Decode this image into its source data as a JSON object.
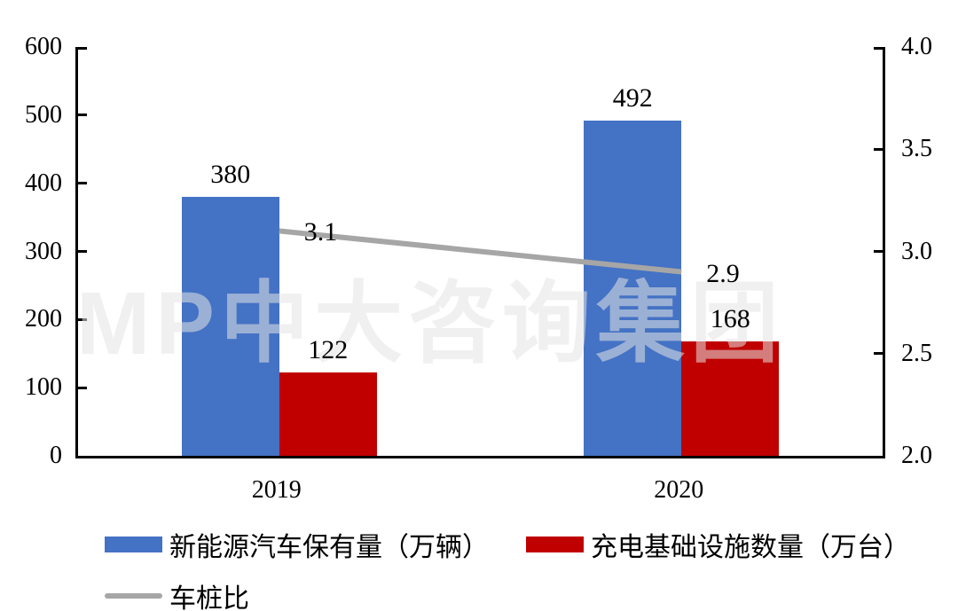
{
  "figure": {
    "watermark": "MP中大咨询集团",
    "background": "#FFFFFF"
  },
  "colors": {
    "bar_blue": "#4472C4",
    "bar_red": "#C00000",
    "line_gray": "#A6A6A6",
    "axis": "#000000"
  },
  "chart_data": {
    "type": "bar",
    "categories": [
      "2019",
      "2020"
    ],
    "series": [
      {
        "name": "新能源汽车保有量（万辆）",
        "type": "bar",
        "axis": "left",
        "color": "#4472C4",
        "values": [
          380,
          492
        ],
        "labels": [
          "380",
          "492"
        ]
      },
      {
        "name": "充电基础设施数量（万台）",
        "type": "bar",
        "axis": "left",
        "color": "#C00000",
        "values": [
          122,
          168
        ],
        "labels": [
          "122",
          "168"
        ]
      },
      {
        "name": "车桩比",
        "type": "line",
        "axis": "right",
        "color": "#A6A6A6",
        "values": [
          3.1,
          2.9
        ],
        "labels": [
          "3.1",
          "2.9"
        ]
      }
    ],
    "left_axis": {
      "min": 0,
      "max": 600,
      "tick_labels": [
        "600",
        "500",
        "400",
        "300",
        "200",
        "100",
        "0"
      ]
    },
    "right_axis": {
      "min": 2.0,
      "max": 4.0,
      "tick_labels": [
        "4.0",
        "3.5",
        "3.0",
        "2.5",
        "2.0"
      ]
    },
    "grid": false,
    "legend_position": "bottom"
  },
  "legend": {
    "rows": [
      [
        {
          "label": "新能源汽车保有量（万辆）",
          "swatch": "bar",
          "color": "#4472C4"
        },
        {
          "label": "充电基础设施数量（万台）",
          "swatch": "bar",
          "color": "#C00000"
        }
      ],
      [
        {
          "label": "车桩比",
          "swatch": "line",
          "color": "#A6A6A6"
        }
      ]
    ]
  }
}
